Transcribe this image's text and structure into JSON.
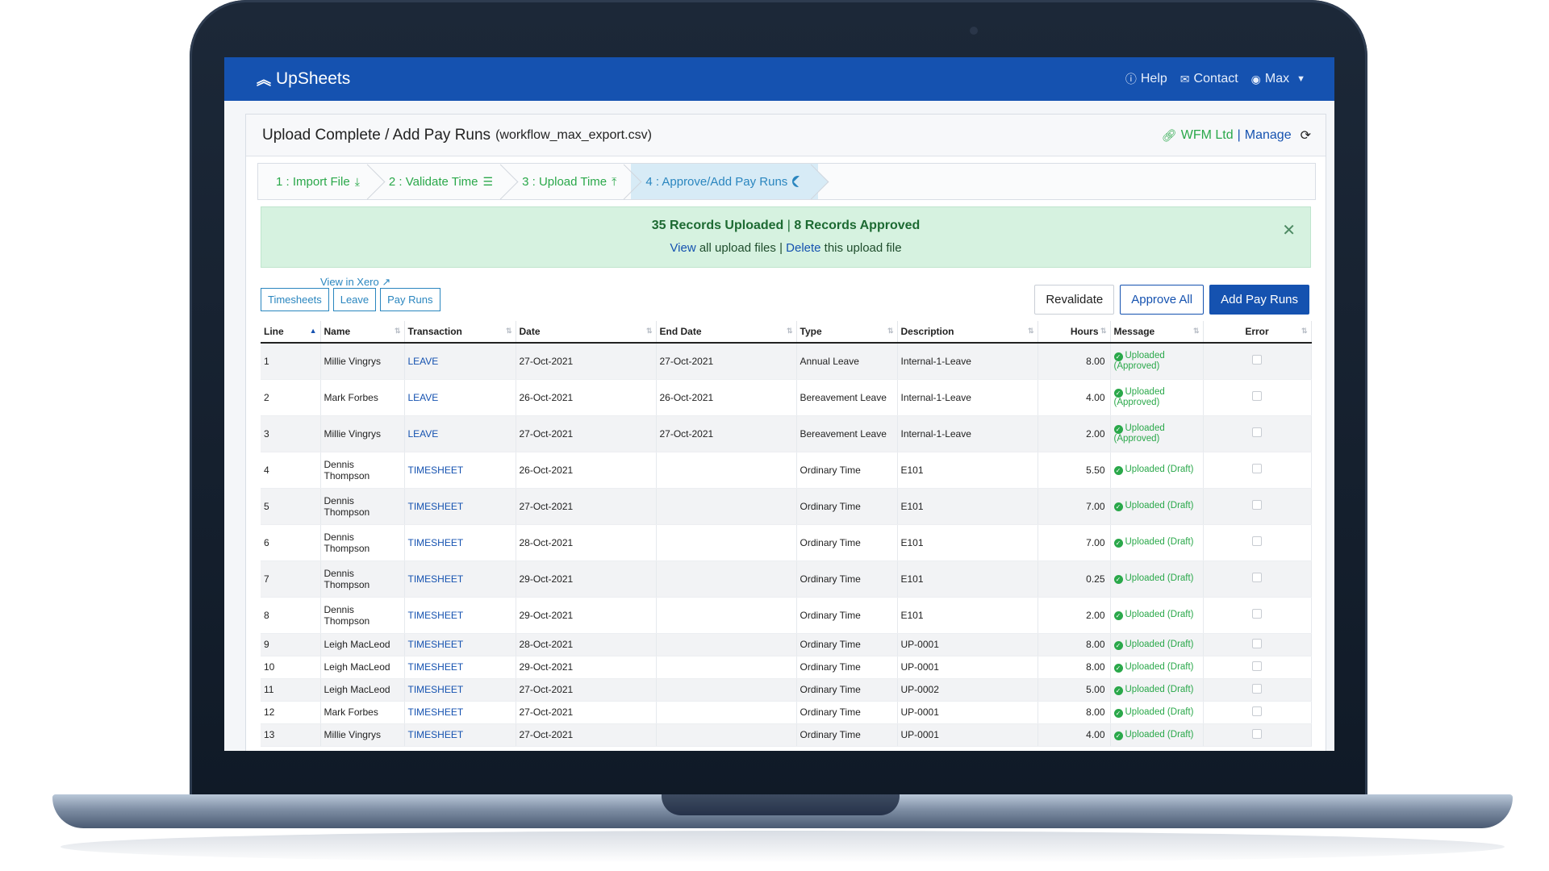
{
  "app": {
    "brand": "UpSheets"
  },
  "nav": {
    "help": "Help",
    "contact": "Contact",
    "user": "Max"
  },
  "header": {
    "title": "Upload Complete / Add Pay Runs",
    "file": "(workflow_max_export.csv)",
    "org_name": "WFM Ltd",
    "org_sep": "|",
    "org_manage": "Manage"
  },
  "steps": [
    {
      "label": "1 : Import File",
      "icon": "download-icon"
    },
    {
      "label": "2 : Validate Time",
      "icon": "list-icon"
    },
    {
      "label": "3 : Upload Time",
      "icon": "upload-icon"
    },
    {
      "label": "4 : Approve/Add Pay Runs",
      "icon": "check-circle-icon"
    }
  ],
  "alert": {
    "uploaded": "35 Records Uploaded",
    "sep": "|",
    "approved": "8 Records Approved",
    "view": "View",
    "view_rest": "all upload files",
    "sep2": "|",
    "delete": "Delete",
    "delete_rest": "this upload file"
  },
  "xero_link": "View in Xero",
  "filters": [
    "Timesheets",
    "Leave",
    "Pay Runs"
  ],
  "actions": {
    "revalidate": "Revalidate",
    "approve_all": "Approve All",
    "add_pay_runs": "Add Pay Runs"
  },
  "table": {
    "columns": [
      "Line",
      "Name",
      "Transaction",
      "Date",
      "End Date",
      "Type",
      "Description",
      "Hours",
      "Message",
      "Error"
    ],
    "rows": [
      {
        "line": "1",
        "name": "Millie Vingrys",
        "transaction": "LEAVE",
        "date": "27-Oct-2021",
        "end_date": "27-Oct-2021",
        "type": "Annual Leave",
        "description": "Internal-1-Leave",
        "hours": "8.00",
        "message": "Uploaded (Approved)"
      },
      {
        "line": "2",
        "name": "Mark Forbes",
        "transaction": "LEAVE",
        "date": "26-Oct-2021",
        "end_date": "26-Oct-2021",
        "type": "Bereavement Leave",
        "description": "Internal-1-Leave",
        "hours": "4.00",
        "message": "Uploaded (Approved)"
      },
      {
        "line": "3",
        "name": "Millie Vingrys",
        "transaction": "LEAVE",
        "date": "27-Oct-2021",
        "end_date": "27-Oct-2021",
        "type": "Bereavement Leave",
        "description": "Internal-1-Leave",
        "hours": "2.00",
        "message": "Uploaded (Approved)"
      },
      {
        "line": "4",
        "name": "Dennis Thompson",
        "transaction": "TIMESHEET",
        "date": "26-Oct-2021",
        "end_date": "",
        "type": "Ordinary Time",
        "description": "E101",
        "hours": "5.50",
        "message": "Uploaded (Draft)"
      },
      {
        "line": "5",
        "name": "Dennis Thompson",
        "transaction": "TIMESHEET",
        "date": "27-Oct-2021",
        "end_date": "",
        "type": "Ordinary Time",
        "description": "E101",
        "hours": "7.00",
        "message": "Uploaded (Draft)"
      },
      {
        "line": "6",
        "name": "Dennis Thompson",
        "transaction": "TIMESHEET",
        "date": "28-Oct-2021",
        "end_date": "",
        "type": "Ordinary Time",
        "description": "E101",
        "hours": "7.00",
        "message": "Uploaded (Draft)"
      },
      {
        "line": "7",
        "name": "Dennis Thompson",
        "transaction": "TIMESHEET",
        "date": "29-Oct-2021",
        "end_date": "",
        "type": "Ordinary Time",
        "description": "E101",
        "hours": "0.25",
        "message": "Uploaded (Draft)"
      },
      {
        "line": "8",
        "name": "Dennis Thompson",
        "transaction": "TIMESHEET",
        "date": "29-Oct-2021",
        "end_date": "",
        "type": "Ordinary Time",
        "description": "E101",
        "hours": "2.00",
        "message": "Uploaded (Draft)"
      },
      {
        "line": "9",
        "name": "Leigh MacLeod",
        "transaction": "TIMESHEET",
        "date": "28-Oct-2021",
        "end_date": "",
        "type": "Ordinary Time",
        "description": "UP-0001",
        "hours": "8.00",
        "message": "Uploaded (Draft)"
      },
      {
        "line": "10",
        "name": "Leigh MacLeod",
        "transaction": "TIMESHEET",
        "date": "29-Oct-2021",
        "end_date": "",
        "type": "Ordinary Time",
        "description": "UP-0001",
        "hours": "8.00",
        "message": "Uploaded (Draft)"
      },
      {
        "line": "11",
        "name": "Leigh MacLeod",
        "transaction": "TIMESHEET",
        "date": "27-Oct-2021",
        "end_date": "",
        "type": "Ordinary Time",
        "description": "UP-0002",
        "hours": "5.00",
        "message": "Uploaded (Draft)"
      },
      {
        "line": "12",
        "name": "Mark Forbes",
        "transaction": "TIMESHEET",
        "date": "27-Oct-2021",
        "end_date": "",
        "type": "Ordinary Time",
        "description": "UP-0001",
        "hours": "8.00",
        "message": "Uploaded (Draft)"
      },
      {
        "line": "13",
        "name": "Millie Vingrys",
        "transaction": "TIMESHEET",
        "date": "27-Oct-2021",
        "end_date": "",
        "type": "Ordinary Time",
        "description": "UP-0001",
        "hours": "4.00",
        "message": "Uploaded (Draft)"
      }
    ]
  },
  "colors": {
    "brand_blue": "#1552b0",
    "success_green": "#2aa84a",
    "alert_bg": "#d6f2e0",
    "step_active_bg": "#d7ebf6"
  }
}
